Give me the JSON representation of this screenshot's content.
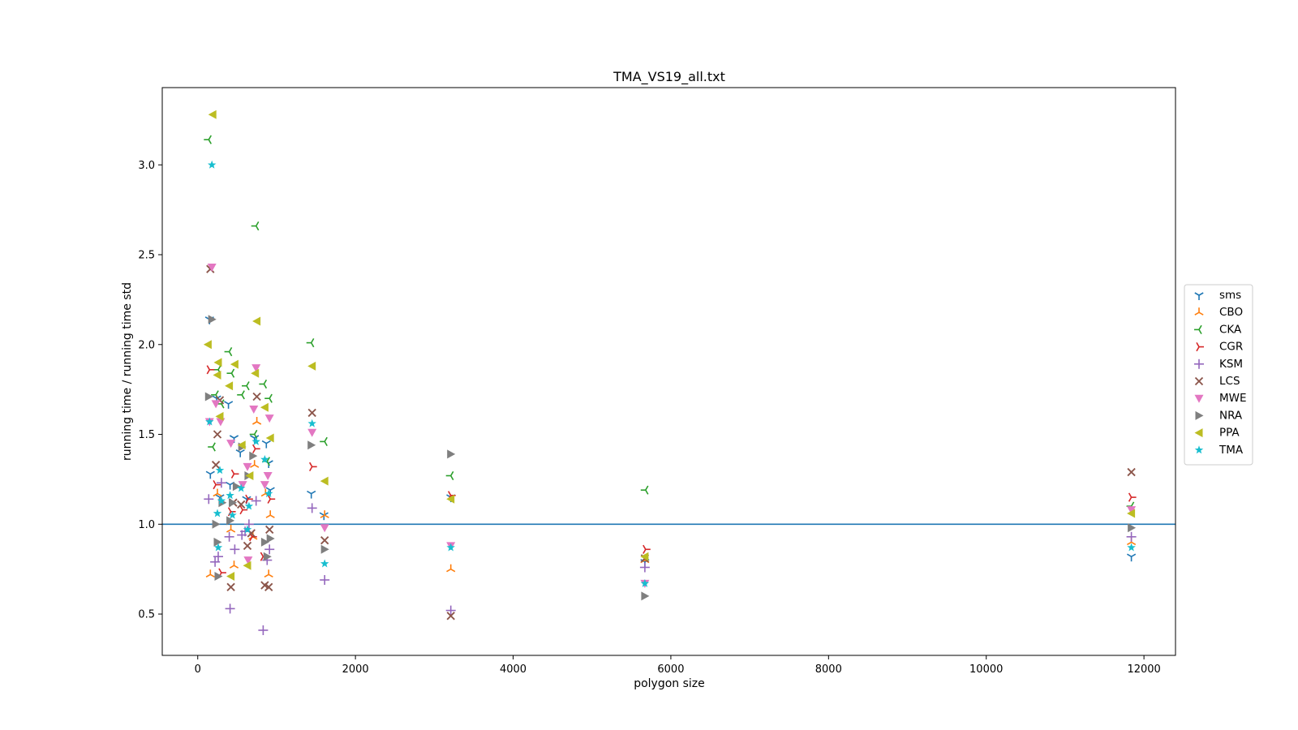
{
  "chart_data": {
    "type": "scatter",
    "title": "TMA_VS19_all.txt",
    "xlabel": "polygon size",
    "ylabel": "running time / running time std",
    "xlim": [
      -450,
      12400
    ],
    "ylim": [
      0.27,
      3.43
    ],
    "xticks": [
      0,
      2000,
      4000,
      6000,
      8000,
      10000,
      12000
    ],
    "yticks": [
      0.5,
      1.0,
      1.5,
      2.0,
      2.5,
      3.0
    ],
    "grid": false,
    "legend_position": "right",
    "reference_line": {
      "y": 1.0,
      "color": "#1f77b4"
    },
    "series": [
      {
        "name": "sms",
        "marker": "tri_down",
        "color": "#1f77b4",
        "points": [
          [
            150,
            2.14
          ],
          [
            160,
            1.28
          ],
          [
            240,
            1.7
          ],
          [
            280,
            1.15
          ],
          [
            390,
            1.67
          ],
          [
            410,
            1.22
          ],
          [
            460,
            1.48
          ],
          [
            540,
            1.4
          ],
          [
            620,
            1.14
          ],
          [
            720,
            1.48
          ],
          [
            870,
            1.45
          ],
          [
            900,
            1.34
          ],
          [
            920,
            1.19
          ],
          [
            1440,
            1.17
          ],
          [
            1600,
            1.05
          ],
          [
            3210,
            1.15
          ],
          [
            5670,
            0.79
          ],
          [
            11840,
            0.82
          ]
        ]
      },
      {
        "name": "CBO",
        "marker": "tri_up",
        "color": "#ff7f0e",
        "points": [
          [
            160,
            0.72
          ],
          [
            250,
            1.17
          ],
          [
            420,
            0.97
          ],
          [
            460,
            0.77
          ],
          [
            700,
            0.93
          ],
          [
            720,
            1.33
          ],
          [
            750,
            1.57
          ],
          [
            860,
            1.17
          ],
          [
            900,
            0.72
          ],
          [
            920,
            1.05
          ],
          [
            1610,
            1.05
          ],
          [
            3210,
            0.75
          ],
          [
            5670,
            0.8
          ],
          [
            11840,
            0.9
          ]
        ]
      },
      {
        "name": "CKA",
        "marker": "tri_left",
        "color": "#2ca02c",
        "points": [
          [
            140,
            3.14
          ],
          [
            190,
            1.43
          ],
          [
            230,
            1.72
          ],
          [
            260,
            1.86
          ],
          [
            300,
            1.67
          ],
          [
            400,
            1.96
          ],
          [
            430,
            1.84
          ],
          [
            560,
            1.72
          ],
          [
            620,
            1.77
          ],
          [
            720,
            1.5
          ],
          [
            740,
            2.66
          ],
          [
            840,
            1.78
          ],
          [
            880,
            1.35
          ],
          [
            910,
            1.7
          ],
          [
            1440,
            2.01
          ],
          [
            1610,
            1.46
          ],
          [
            3210,
            1.27
          ],
          [
            5680,
            1.19
          ],
          [
            11840,
            1.1
          ]
        ]
      },
      {
        "name": "CGR",
        "marker": "tri_right",
        "color": "#d62728",
        "points": [
          [
            150,
            1.86
          ],
          [
            230,
            1.22
          ],
          [
            300,
            0.73
          ],
          [
            420,
            1.07
          ],
          [
            460,
            1.28
          ],
          [
            570,
            1.08
          ],
          [
            640,
            1.14
          ],
          [
            690,
            0.93
          ],
          [
            730,
            1.42
          ],
          [
            830,
            0.82
          ],
          [
            920,
            1.14
          ],
          [
            1450,
            1.32
          ],
          [
            3210,
            1.16
          ],
          [
            5680,
            0.86
          ],
          [
            11840,
            1.15
          ]
        ]
      },
      {
        "name": "KSM",
        "marker": "plus",
        "color": "#9467bd",
        "points": [
          [
            140,
            1.14
          ],
          [
            220,
            0.79
          ],
          [
            260,
            0.82
          ],
          [
            300,
            1.23
          ],
          [
            400,
            0.93
          ],
          [
            410,
            0.53
          ],
          [
            470,
            0.86
          ],
          [
            560,
            0.94
          ],
          [
            600,
            0.96
          ],
          [
            650,
            1.0
          ],
          [
            740,
            1.13
          ],
          [
            830,
            0.41
          ],
          [
            880,
            0.8
          ],
          [
            910,
            0.86
          ],
          [
            1450,
            1.09
          ],
          [
            1610,
            0.69
          ],
          [
            3210,
            0.52
          ],
          [
            5670,
            0.76
          ],
          [
            11840,
            0.93
          ]
        ]
      },
      {
        "name": "LCS",
        "marker": "x",
        "color": "#8c564b",
        "points": [
          [
            160,
            2.42
          ],
          [
            230,
            1.33
          ],
          [
            250,
            1.5
          ],
          [
            280,
            1.69
          ],
          [
            420,
            0.65
          ],
          [
            450,
            1.12
          ],
          [
            550,
            1.11
          ],
          [
            630,
            0.88
          ],
          [
            680,
            0.95
          ],
          [
            750,
            1.71
          ],
          [
            850,
            0.66
          ],
          [
            900,
            0.65
          ],
          [
            910,
            0.97
          ],
          [
            1450,
            1.62
          ],
          [
            1610,
            0.91
          ],
          [
            3210,
            0.49
          ],
          [
            5670,
            0.81
          ],
          [
            11840,
            1.29
          ]
        ]
      },
      {
        "name": "MWE",
        "marker": "triangle_down",
        "color": "#e377c2",
        "points": [
          [
            150,
            1.57
          ],
          [
            180,
            2.43
          ],
          [
            230,
            1.67
          ],
          [
            290,
            1.57
          ],
          [
            420,
            1.45
          ],
          [
            570,
            1.22
          ],
          [
            630,
            1.32
          ],
          [
            640,
            0.8
          ],
          [
            710,
            1.64
          ],
          [
            740,
            1.87
          ],
          [
            850,
            1.22
          ],
          [
            890,
            1.27
          ],
          [
            910,
            1.59
          ],
          [
            1450,
            1.51
          ],
          [
            1610,
            0.98
          ],
          [
            3210,
            0.88
          ],
          [
            5670,
            0.67
          ],
          [
            11840,
            1.08
          ]
        ]
      },
      {
        "name": "NRA",
        "marker": "triangle_right",
        "color": "#7f7f7f",
        "points": [
          [
            140,
            1.71
          ],
          [
            180,
            2.14
          ],
          [
            230,
            1.0
          ],
          [
            250,
            0.9
          ],
          [
            260,
            0.71
          ],
          [
            310,
            1.12
          ],
          [
            410,
            1.02
          ],
          [
            440,
            1.12
          ],
          [
            490,
            1.21
          ],
          [
            560,
            1.43
          ],
          [
            640,
            1.27
          ],
          [
            700,
            1.38
          ],
          [
            850,
            0.9
          ],
          [
            880,
            0.82
          ],
          [
            920,
            0.92
          ],
          [
            1440,
            1.44
          ],
          [
            1610,
            0.86
          ],
          [
            3210,
            1.39
          ],
          [
            5670,
            0.6
          ],
          [
            11840,
            0.98
          ]
        ]
      },
      {
        "name": "PPA",
        "marker": "triangle_left",
        "color": "#bcbd22",
        "points": [
          [
            130,
            2.0
          ],
          [
            190,
            3.28
          ],
          [
            250,
            1.83
          ],
          [
            260,
            1.9
          ],
          [
            280,
            1.6
          ],
          [
            400,
            1.77
          ],
          [
            420,
            0.71
          ],
          [
            470,
            1.89
          ],
          [
            560,
            1.44
          ],
          [
            630,
            0.77
          ],
          [
            660,
            1.27
          ],
          [
            730,
            1.84
          ],
          [
            750,
            2.13
          ],
          [
            850,
            1.65
          ],
          [
            920,
            1.48
          ],
          [
            1450,
            1.88
          ],
          [
            1610,
            1.24
          ],
          [
            3210,
            1.14
          ],
          [
            5670,
            0.82
          ],
          [
            11840,
            1.06
          ]
        ]
      },
      {
        "name": "TMA",
        "marker": "star",
        "color": "#17becf",
        "points": [
          [
            150,
            1.57
          ],
          [
            180,
            3.0
          ],
          [
            250,
            1.06
          ],
          [
            260,
            0.87
          ],
          [
            280,
            1.3
          ],
          [
            300,
            1.13
          ],
          [
            410,
            1.16
          ],
          [
            440,
            1.05
          ],
          [
            550,
            1.2
          ],
          [
            630,
            0.97
          ],
          [
            650,
            1.1
          ],
          [
            740,
            1.46
          ],
          [
            850,
            1.36
          ],
          [
            900,
            1.17
          ],
          [
            1450,
            1.56
          ],
          [
            1610,
            0.78
          ],
          [
            3210,
            0.87
          ],
          [
            5670,
            0.67
          ],
          [
            11840,
            0.87
          ]
        ]
      }
    ]
  }
}
